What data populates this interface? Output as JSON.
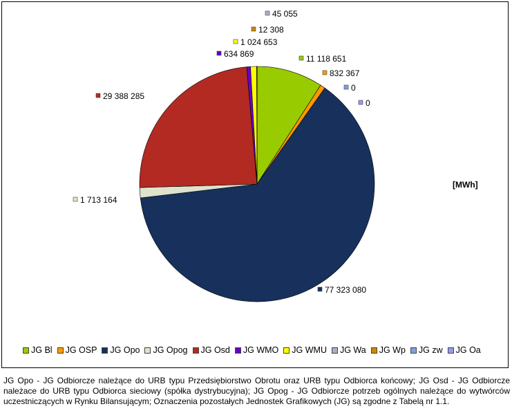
{
  "chart_data": {
    "type": "pie",
    "unit": "[MWh]",
    "slices": [
      {
        "name": "JG Bl",
        "value": 11118651,
        "label": "11 118 651",
        "color": "#99cc00"
      },
      {
        "name": "JG OSP",
        "value": 832367,
        "label": "832 367",
        "color": "#ff9900"
      },
      {
        "name": "JG Opo",
        "value": 77323080,
        "label": "77 323 080",
        "color": "#17305c"
      },
      {
        "name": "JG Opog",
        "value": 1713164,
        "label": "1 713 164",
        "color": "#dde3cc"
      },
      {
        "name": "JG Osd",
        "value": 29388285,
        "label": "29 388 285",
        "color": "#b22a22"
      },
      {
        "name": "JG WMO",
        "value": 634869,
        "label": "634 869",
        "color": "#6600cc"
      },
      {
        "name": "JG WMU",
        "value": 1024653,
        "label": "1 024 653",
        "color": "#ffff00"
      },
      {
        "name": "JG Wa",
        "value": 45055,
        "label": "45 055",
        "color": "#a6b0c8"
      },
      {
        "name": "JG Wp",
        "value": 12308,
        "label": "12 308",
        "color": "#cc8800"
      },
      {
        "name": "JG zw",
        "value": 0,
        "label": "0",
        "color": "#7f9fe0"
      },
      {
        "name": "JG Oa",
        "value": 0,
        "label": "0",
        "color": "#9999ee"
      }
    ]
  },
  "footnote": "JG Opo - JG Odbiorcze należące do URB typu Przedsiębiorstwo Obrotu oraz URB typu Odbiorca końcowy; JG Osd - JG Odbiorcze należace do URB typu Odbiorca sieciowy (spółka dystrybucyjna); JG Opog - JG Odbiorcze potrzeb ogólnych należące do wytwórców uczestniczących w Rynku Bilansującym; Oznaczenia pozostałych Jednostek Grafikowych (JG) są zgodne z Tabelą nr 1.1."
}
